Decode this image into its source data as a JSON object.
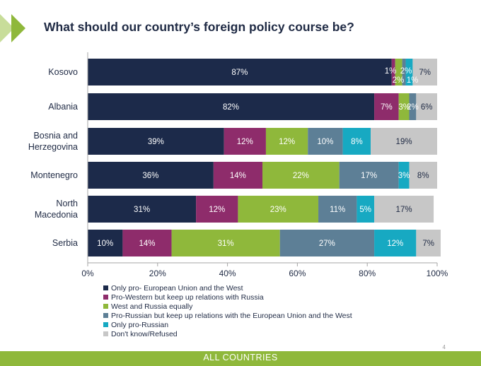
{
  "colors": {
    "accent": "#8fb83b",
    "title": "#1f2a44",
    "series": [
      "#1c2a4a",
      "#8e2c6b",
      "#8fb83b",
      "#5d7f96",
      "#17a9c2",
      "#c7c7c7"
    ]
  },
  "chart_data": {
    "type": "bar",
    "orientation": "horizontal",
    "stacked": true,
    "title": "What should our country’s foreign policy course be?",
    "categories": [
      "Kosovo",
      "Albania",
      "Bosnia and Herzegovina",
      "Montenegro",
      "North Macedonia",
      "Serbia"
    ],
    "series": [
      {
        "name": "Only pro- European Union and the West",
        "values": [
          87,
          82,
          39,
          36,
          31,
          10
        ]
      },
      {
        "name": "Pro-Western but keep up relations with Russia",
        "values": [
          1,
          7,
          12,
          14,
          12,
          14
        ]
      },
      {
        "name": "West and Russia equally",
        "values": [
          2,
          3,
          12,
          22,
          23,
          31
        ]
      },
      {
        "name": "Pro-Russian but keep up relations with the European Union and the West",
        "values": [
          1,
          2,
          10,
          17,
          11,
          27
        ]
      },
      {
        "name": "Only pro-Russian",
        "values": [
          2,
          0,
          8,
          3,
          5,
          12
        ]
      },
      {
        "name": "Don't know/Refused",
        "values": [
          7,
          6,
          19,
          8,
          17,
          7
        ]
      }
    ],
    "xlim": [
      0,
      100
    ],
    "x_ticks": [
      "0%",
      "20%",
      "40%",
      "60%",
      "80%",
      "100%"
    ],
    "legend_position": "bottom-left",
    "grid": false
  },
  "page_number": "4",
  "footer": "ALL COUNTRIES"
}
